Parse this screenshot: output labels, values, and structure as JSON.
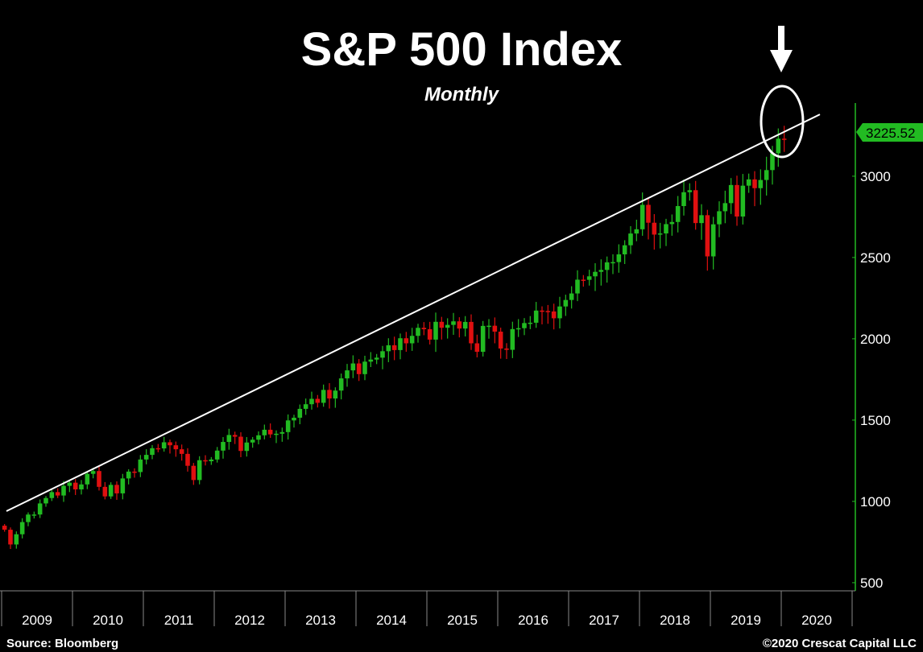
{
  "chart_data": {
    "type": "candlestick",
    "title": "S&P 500 Index",
    "subtitle": "Monthly",
    "y_ticks": [
      500,
      1000,
      1500,
      2000,
      2500,
      3000
    ],
    "ylim": [
      450,
      3450
    ],
    "x_labels": [
      "2009",
      "2010",
      "2011",
      "2012",
      "2013",
      "2014",
      "2015",
      "2016",
      "2017",
      "2018",
      "2019",
      "2020"
    ],
    "last_price": "3225.52",
    "colors": {
      "up": "#22bb22",
      "down": "#e01010",
      "axis": "#22bb22",
      "background": "#000000",
      "trendline": "#ffffff"
    },
    "trendline": {
      "start": {
        "x": "2009-01",
        "y": 940
      },
      "end": {
        "x": "2020-03",
        "y": 3380
      }
    },
    "annotations": [
      "down-arrow",
      "circle-highlight"
    ],
    "close": [
      825.88,
      735.09,
      797.87,
      872.81,
      919.14,
      919.32,
      987.48,
      1020.62,
      1057.08,
      1036.19,
      1095.63,
      1115.1,
      1073.87,
      1104.49,
      1169.43,
      1186.69,
      1089.41,
      1030.71,
      1101.6,
      1049.33,
      1141.2,
      1183.26,
      1180.55,
      1257.64,
      1286.12,
      1327.22,
      1325.83,
      1363.61,
      1345.2,
      1320.64,
      1292.28,
      1218.89,
      1131.42,
      1253.3,
      1246.96,
      1257.6,
      1312.41,
      1365.68,
      1408.47,
      1397.91,
      1310.33,
      1362.16,
      1379.32,
      1406.58,
      1440.67,
      1412.16,
      1416.18,
      1426.19,
      1498.11,
      1514.68,
      1569.19,
      1597.57,
      1630.74,
      1606.28,
      1685.73,
      1632.97,
      1681.55,
      1756.54,
      1805.81,
      1848.36,
      1782.59,
      1859.45,
      1872.34,
      1883.95,
      1923.57,
      1960.23,
      1930.67,
      2003.37,
      1972.29,
      2018.05,
      2067.56,
      2058.9,
      1994.99,
      2104.5,
      2067.89,
      2085.51,
      2107.39,
      2063.11,
      2103.84,
      1972.18,
      1920.03,
      2079.36,
      2080.41,
      2043.94,
      1940.24,
      1932.23,
      2059.74,
      2065.3,
      2096.95,
      2098.86,
      2173.6,
      2170.95,
      2168.27,
      2126.15,
      2198.81,
      2238.83,
      2278.87,
      2363.64,
      2362.72,
      2384.2,
      2411.8,
      2423.41,
      2470.3,
      2471.65,
      2519.36,
      2575.26,
      2647.58,
      2673.61,
      2823.81,
      2713.83,
      2640.87,
      2648.05,
      2705.27,
      2718.37,
      2816.29,
      2901.52,
      2913.98,
      2711.74,
      2760.17,
      2506.85,
      2704.1,
      2784.49,
      2834.4,
      2945.83,
      2752.06,
      2941.76,
      2980.38,
      2926.46,
      2976.74,
      3037.56,
      3140.98,
      3230.78,
      3225.52
    ]
  },
  "x_axis_labels": [
    "2009",
    "2010",
    "2011",
    "2012",
    "2013",
    "2014",
    "2015",
    "2016",
    "2017",
    "2018",
    "2019",
    "2020"
  ],
  "y_axis_labels": [
    "500",
    "1000",
    "1500",
    "2000",
    "2500",
    "3000"
  ],
  "last_price_label": "3225.52",
  "footer": {
    "source": "Source: Bloomberg",
    "copyright": "©2020 Crescat Capital LLC"
  }
}
